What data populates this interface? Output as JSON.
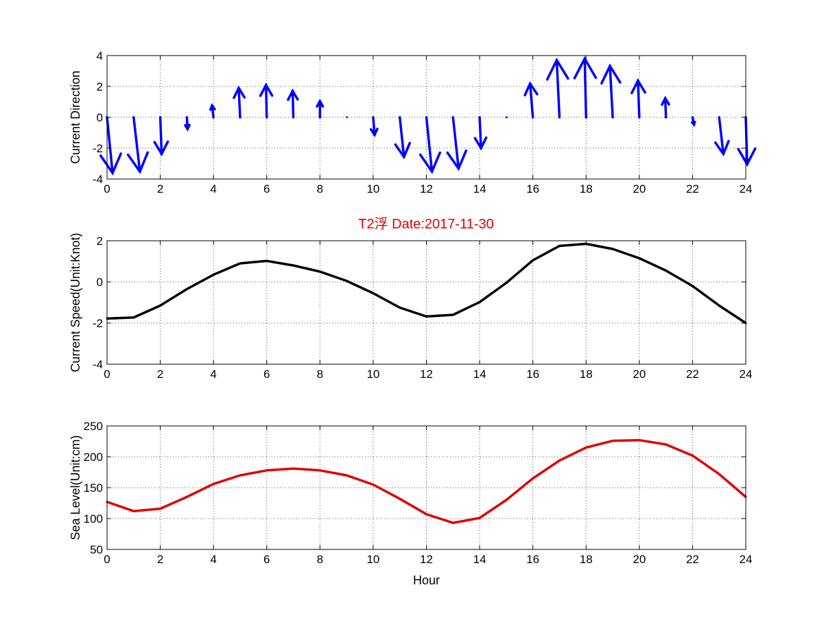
{
  "title": "T2浮    Date:2017-11-30",
  "colors": {
    "title": "#e00000",
    "direction_arrows": "#0000ff",
    "speed_line": "#000000",
    "sea_level_line": "#e00000"
  },
  "chart_data": [
    {
      "type": "quiver",
      "ylabel": "Current Direction",
      "xlim": [
        0,
        24
      ],
      "ylim": [
        -4,
        4
      ],
      "xticks": [
        "0",
        "2",
        "4",
        "6",
        "8",
        "10",
        "12",
        "14",
        "16",
        "18",
        "20",
        "22",
        "24"
      ],
      "yticks": [
        "4",
        "2",
        "0",
        "-2",
        "-4"
      ],
      "grid": true,
      "x": [
        0,
        1,
        2,
        3,
        4,
        5,
        6,
        7,
        8,
        9,
        10,
        11,
        12,
        13,
        14,
        15,
        16,
        17,
        18,
        19,
        20,
        21,
        22,
        23,
        24
      ],
      "u": [
        0.4,
        0.45,
        0.1,
        0.05,
        -0.1,
        -0.1,
        -0.05,
        -0.05,
        0.0,
        0.0,
        0.1,
        0.3,
        0.4,
        0.4,
        0.1,
        0.0,
        -0.2,
        -0.2,
        -0.1,
        -0.2,
        -0.1,
        -0.05,
        0.1,
        0.3,
        0.1
      ],
      "v": [
        -3.8,
        -3.7,
        -2.5,
        -0.8,
        0.8,
        2.0,
        2.2,
        1.8,
        1.1,
        0.05,
        -1.2,
        -2.7,
        -3.7,
        -3.5,
        -2.1,
        0.0,
        2.3,
        3.9,
        4.0,
        3.5,
        2.5,
        1.3,
        -0.5,
        -2.5,
        -3.2
      ]
    },
    {
      "type": "line",
      "ylabel": "Current Speed(Unit:Knot)",
      "xlim": [
        0,
        24
      ],
      "ylim": [
        -4,
        2
      ],
      "xticks": [
        "0",
        "2",
        "4",
        "6",
        "8",
        "10",
        "12",
        "14",
        "16",
        "18",
        "20",
        "22",
        "24"
      ],
      "yticks": [
        "2",
        "0",
        "-2",
        "-4"
      ],
      "grid": true,
      "x": [
        0,
        1,
        2,
        3,
        4,
        5,
        6,
        7,
        8,
        9,
        10,
        11,
        12,
        13,
        14,
        15,
        16,
        17,
        18,
        19,
        20,
        21,
        22,
        23,
        24
      ],
      "y": [
        -1.78,
        -1.73,
        -1.15,
        -0.35,
        0.35,
        0.9,
        1.02,
        0.8,
        0.5,
        0.05,
        -0.55,
        -1.25,
        -1.68,
        -1.6,
        -0.98,
        -0.05,
        1.05,
        1.75,
        1.85,
        1.6,
        1.15,
        0.55,
        -0.2,
        -1.15,
        -2.0
      ]
    },
    {
      "type": "line",
      "ylabel": "Sea Level(Unit:cm)",
      "xlabel": "Hour",
      "xlim": [
        0,
        24
      ],
      "ylim": [
        50,
        250
      ],
      "xticks": [
        "0",
        "2",
        "4",
        "6",
        "8",
        "10",
        "12",
        "14",
        "16",
        "18",
        "20",
        "22",
        "24"
      ],
      "yticks": [
        "250",
        "200",
        "150",
        "100",
        "50"
      ],
      "grid": true,
      "x": [
        0,
        1,
        2,
        3,
        4,
        5,
        6,
        7,
        8,
        9,
        10,
        11,
        12,
        13,
        14,
        15,
        16,
        17,
        18,
        19,
        20,
        21,
        22,
        23,
        24
      ],
      "y": [
        127,
        112,
        116,
        135,
        156,
        170,
        178,
        181,
        178,
        170,
        155,
        132,
        107,
        93,
        101,
        130,
        165,
        194,
        215,
        226,
        227,
        220,
        202,
        172,
        135
      ]
    }
  ]
}
